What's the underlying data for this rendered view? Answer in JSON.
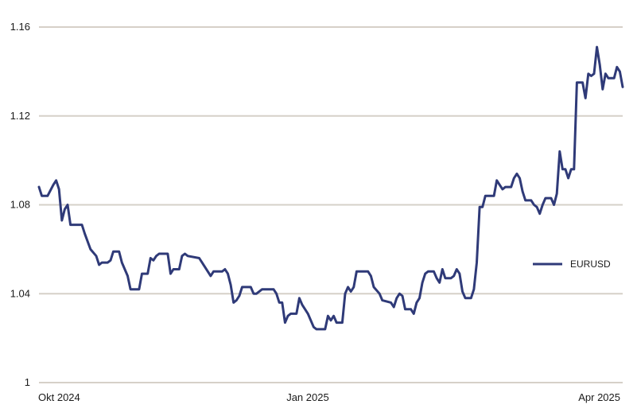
{
  "chart_data": {
    "type": "line",
    "title": "",
    "xlabel": "",
    "ylabel": "",
    "ylim": [
      1,
      1.16
    ],
    "x_range": [
      "2024-10-01",
      "2025-04-15"
    ],
    "grid": true,
    "legend_position": "right",
    "colors": {
      "line": "#2f3a78",
      "grid": "#d6d0c8",
      "text": "#1a1a1a"
    },
    "y_ticks": [
      {
        "value": 1.16,
        "label": "1.16"
      },
      {
        "value": 1.12,
        "label": "1.12"
      },
      {
        "value": 1.08,
        "label": "1.08"
      },
      {
        "value": 1.04,
        "label": "1.04"
      },
      {
        "value": 1,
        "label": "1"
      }
    ],
    "x_ticks": [
      {
        "value": "2024-10-01",
        "label": "Okt 2024"
      },
      {
        "value": "2025-01-01",
        "label": "Jan 2025"
      },
      {
        "value": "2025-04-01",
        "label": "Apr 2025"
      }
    ],
    "series": [
      {
        "name": "EURUSD",
        "points": [
          [
            "2024-10-01",
            1.088
          ],
          [
            "2024-10-02",
            1.084
          ],
          [
            "2024-10-03",
            1.084
          ],
          [
            "2024-10-04",
            1.084
          ],
          [
            "2024-10-06",
            1.089
          ],
          [
            "2024-10-07",
            1.091
          ],
          [
            "2024-10-08",
            1.087
          ],
          [
            "2024-10-09",
            1.073
          ],
          [
            "2024-10-10",
            1.078
          ],
          [
            "2024-10-11",
            1.08
          ],
          [
            "2024-10-12",
            1.071
          ],
          [
            "2024-10-14",
            1.071
          ],
          [
            "2024-10-16",
            1.071
          ],
          [
            "2024-10-17",
            1.067
          ],
          [
            "2024-10-19",
            1.06
          ],
          [
            "2024-10-21",
            1.057
          ],
          [
            "2024-10-22",
            1.053
          ],
          [
            "2024-10-23",
            1.054
          ],
          [
            "2024-10-25",
            1.054
          ],
          [
            "2024-10-26",
            1.055
          ],
          [
            "2024-10-27",
            1.059
          ],
          [
            "2024-10-29",
            1.059
          ],
          [
            "2024-10-30",
            1.054
          ],
          [
            "2024-11-01",
            1.048
          ],
          [
            "2024-11-02",
            1.042
          ],
          [
            "2024-11-04",
            1.042
          ],
          [
            "2024-11-05",
            1.042
          ],
          [
            "2024-11-06",
            1.049
          ],
          [
            "2024-11-08",
            1.049
          ],
          [
            "2024-11-09",
            1.056
          ],
          [
            "2024-11-10",
            1.055
          ],
          [
            "2024-11-11",
            1.057
          ],
          [
            "2024-11-12",
            1.058
          ],
          [
            "2024-11-15",
            1.058
          ],
          [
            "2024-11-16",
            1.049
          ],
          [
            "2024-11-17",
            1.051
          ],
          [
            "2024-11-19",
            1.051
          ],
          [
            "2024-11-20",
            1.057
          ],
          [
            "2024-11-21",
            1.058
          ],
          [
            "2024-11-22",
            1.057
          ],
          [
            "2024-11-26",
            1.056
          ],
          [
            "2024-11-28",
            1.052
          ],
          [
            "2024-11-30",
            1.048
          ],
          [
            "2024-12-01",
            1.05
          ],
          [
            "2024-12-04",
            1.05
          ],
          [
            "2024-12-05",
            1.051
          ],
          [
            "2024-12-06",
            1.049
          ],
          [
            "2024-12-07",
            1.044
          ],
          [
            "2024-12-08",
            1.036
          ],
          [
            "2024-12-09",
            1.037
          ],
          [
            "2024-12-10",
            1.039
          ],
          [
            "2024-12-11",
            1.043
          ],
          [
            "2024-12-14",
            1.043
          ],
          [
            "2024-12-15",
            1.04
          ],
          [
            "2024-12-16",
            1.04
          ],
          [
            "2024-12-18",
            1.042
          ],
          [
            "2024-12-22",
            1.042
          ],
          [
            "2024-12-23",
            1.04
          ],
          [
            "2024-12-24",
            1.036
          ],
          [
            "2024-12-25",
            1.036
          ],
          [
            "2024-12-26",
            1.027
          ],
          [
            "2024-12-27",
            1.03
          ],
          [
            "2024-12-28",
            1.031
          ],
          [
            "2024-12-30",
            1.031
          ],
          [
            "2024-12-31",
            1.038
          ],
          [
            "2025-01-01",
            1.035
          ],
          [
            "2025-01-03",
            1.031
          ],
          [
            "2025-01-05",
            1.025
          ],
          [
            "2025-01-06",
            1.024
          ],
          [
            "2025-01-09",
            1.024
          ],
          [
            "2025-01-10",
            1.03
          ],
          [
            "2025-01-11",
            1.028
          ],
          [
            "2025-01-12",
            1.03
          ],
          [
            "2025-01-13",
            1.027
          ],
          [
            "2025-01-15",
            1.027
          ],
          [
            "2025-01-16",
            1.04
          ],
          [
            "2025-01-17",
            1.043
          ],
          [
            "2025-01-18",
            1.041
          ],
          [
            "2025-01-19",
            1.043
          ],
          [
            "2025-01-20",
            1.05
          ],
          [
            "2025-01-24",
            1.05
          ],
          [
            "2025-01-25",
            1.048
          ],
          [
            "2025-01-26",
            1.043
          ],
          [
            "2025-01-28",
            1.04
          ],
          [
            "2025-01-29",
            1.037
          ],
          [
            "2025-02-01",
            1.036
          ],
          [
            "2025-02-02",
            1.034
          ],
          [
            "2025-02-03",
            1.038
          ],
          [
            "2025-02-04",
            1.04
          ],
          [
            "2025-02-05",
            1.039
          ],
          [
            "2025-02-06",
            1.033
          ],
          [
            "2025-02-08",
            1.033
          ],
          [
            "2025-02-09",
            1.031
          ],
          [
            "2025-02-10",
            1.036
          ],
          [
            "2025-02-11",
            1.038
          ],
          [
            "2025-02-12",
            1.045
          ],
          [
            "2025-02-13",
            1.049
          ],
          [
            "2025-02-14",
            1.05
          ],
          [
            "2025-02-16",
            1.05
          ],
          [
            "2025-02-17",
            1.047
          ],
          [
            "2025-02-18",
            1.045
          ],
          [
            "2025-02-19",
            1.051
          ],
          [
            "2025-02-20",
            1.047
          ],
          [
            "2025-02-22",
            1.047
          ],
          [
            "2025-02-23",
            1.048
          ],
          [
            "2025-02-24",
            1.051
          ],
          [
            "2025-02-25",
            1.049
          ],
          [
            "2025-02-26",
            1.041
          ],
          [
            "2025-02-27",
            1.038
          ],
          [
            "2025-03-01",
            1.038
          ],
          [
            "2025-03-02",
            1.042
          ],
          [
            "2025-03-03",
            1.054
          ],
          [
            "2025-03-04",
            1.079
          ],
          [
            "2025-03-05",
            1.079
          ],
          [
            "2025-03-06",
            1.084
          ],
          [
            "2025-03-09",
            1.084
          ],
          [
            "2025-03-10",
            1.091
          ],
          [
            "2025-03-11",
            1.089
          ],
          [
            "2025-03-12",
            1.087
          ],
          [
            "2025-03-13",
            1.088
          ],
          [
            "2025-03-15",
            1.088
          ],
          [
            "2025-03-16",
            1.092
          ],
          [
            "2025-03-17",
            1.094
          ],
          [
            "2025-03-18",
            1.092
          ],
          [
            "2025-03-19",
            1.086
          ],
          [
            "2025-03-20",
            1.082
          ],
          [
            "2025-03-22",
            1.082
          ],
          [
            "2025-03-23",
            1.08
          ],
          [
            "2025-03-24",
            1.079
          ],
          [
            "2025-03-25",
            1.076
          ],
          [
            "2025-03-26",
            1.08
          ],
          [
            "2025-03-27",
            1.083
          ],
          [
            "2025-03-29",
            1.083
          ],
          [
            "2025-03-30",
            1.08
          ],
          [
            "2025-03-31",
            1.085
          ],
          [
            "2025-04-01",
            1.104
          ],
          [
            "2025-04-02",
            1.096
          ],
          [
            "2025-04-03",
            1.096
          ],
          [
            "2025-04-04",
            1.092
          ],
          [
            "2025-04-05",
            1.096
          ],
          [
            "2025-04-06",
            1.096
          ],
          [
            "2025-04-07",
            1.135
          ],
          [
            "2025-04-09",
            1.135
          ],
          [
            "2025-04-10",
            1.128
          ],
          [
            "2025-04-11",
            1.139
          ],
          [
            "2025-04-12",
            1.138
          ],
          [
            "2025-04-13",
            1.139
          ],
          [
            "2025-04-14",
            1.151
          ],
          [
            "2025-04-15",
            1.143
          ],
          [
            "2025-04-16",
            1.132
          ],
          [
            "2025-04-17",
            1.139
          ],
          [
            "2025-04-18",
            1.137
          ],
          [
            "2025-04-20",
            1.137
          ],
          [
            "2025-04-21",
            1.142
          ],
          [
            "2025-04-22",
            1.14
          ],
          [
            "2025-04-23",
            1.133
          ]
        ]
      }
    ]
  }
}
